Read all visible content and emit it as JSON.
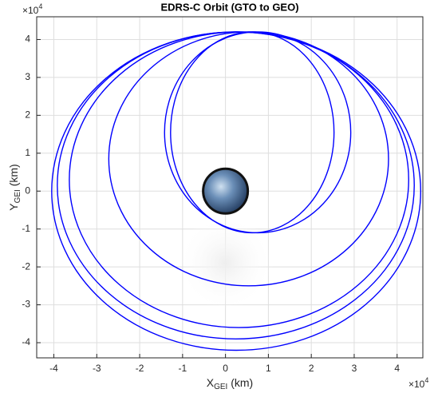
{
  "chart_data": {
    "type": "orbit",
    "title": "EDRS-C Orbit (GTO to GEO)",
    "xlabel": {
      "main": "X",
      "sub": "GEI",
      "unit": " (km)"
    },
    "ylabel": {
      "main": "Y",
      "sub": "GEI",
      "unit": " (km)"
    },
    "x_exponent": {
      "base": "×10",
      "power": "4"
    },
    "y_exponent": {
      "base": "×10",
      "power": "4"
    },
    "xlim": [
      -4.4,
      4.6
    ],
    "ylim": [
      -4.4,
      4.6
    ],
    "xticks": [
      -4,
      -3,
      -2,
      -1,
      0,
      1,
      2,
      3,
      4
    ],
    "yticks": [
      -4,
      -3,
      -2,
      -1,
      0,
      1,
      2,
      3,
      4
    ],
    "grid": true,
    "color": "#0000ff",
    "orbits": [
      {
        "xmin": -1.28,
        "xmax": 2.53,
        "ymin": -1.1,
        "ymax": 4.2
      },
      {
        "xmin": -1.42,
        "xmax": 2.92,
        "ymin": -1.1,
        "ymax": 4.2
      },
      {
        "xmin": -2.72,
        "xmax": 3.8,
        "ymin": -2.5,
        "ymax": 4.2
      },
      {
        "xmin": -3.64,
        "xmax": 4.27,
        "ymin": -3.6,
        "ymax": 4.2
      },
      {
        "xmin": -3.92,
        "xmax": 4.4,
        "ymin": -3.9,
        "ymax": 4.2
      },
      {
        "xmin": -4.05,
        "xmax": 4.55,
        "ymin": -4.2,
        "ymax": 4.2
      }
    ]
  }
}
